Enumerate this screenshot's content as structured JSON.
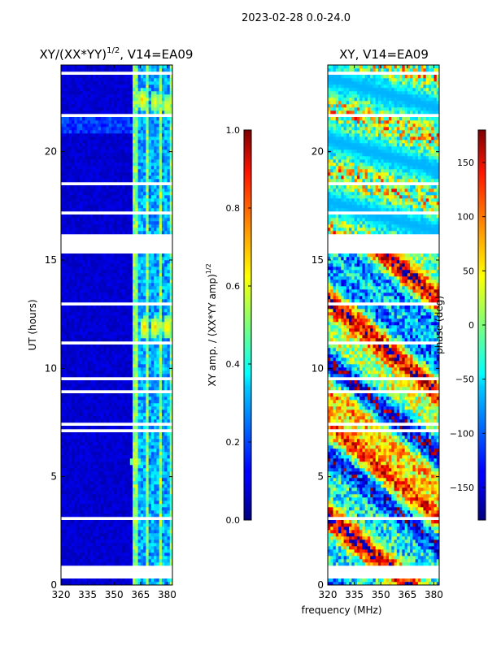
{
  "suptitle": "2023-02-28 0.0-24.0",
  "shared_xlabel": "frequency (MHz)",
  "chart_data": [
    {
      "type": "heatmap",
      "id": "amplitude",
      "title": "XY/(XX*YY)",
      "title_exponent": "1/2",
      "title_suffix": ", V14=EA09",
      "ylabel": "UT (hours)",
      "xlim": [
        320,
        383
      ],
      "ylim": [
        0,
        24
      ],
      "xticks": [
        320,
        335,
        350,
        365,
        380
      ],
      "yticks": [
        0,
        5,
        10,
        15,
        20
      ],
      "colormap": "jet",
      "colorbar": {
        "label": "XY amp. / (XX*YY amp)",
        "label_exponent": "1/2",
        "range": [
          0.0,
          1.0
        ],
        "ticks": [
          "0.0",
          "0.2",
          "0.4",
          "0.6",
          "0.8",
          "1.0"
        ]
      },
      "gap_hours": [
        0.5,
        15.9
      ],
      "low_region_value": 0.05,
      "high_band_start_mhz": 361,
      "bright_patches": [
        {
          "freq": 366,
          "ut": 22.4,
          "value": 0.7
        },
        {
          "freq": 373,
          "ut": 22.3,
          "value": 0.65
        },
        {
          "freq": 380,
          "ut": 22.1,
          "value": 0.65
        },
        {
          "freq": 367,
          "ut": 11.9,
          "value": 0.7
        },
        {
          "freq": 373,
          "ut": 11.9,
          "value": 0.7
        },
        {
          "freq": 380,
          "ut": 11.9,
          "value": 0.7
        },
        {
          "freq": 362,
          "ut": 5.7,
          "value": 0.65
        }
      ]
    },
    {
      "type": "heatmap",
      "id": "phase",
      "title": "XY, V14=EA09",
      "ylabel": "",
      "xlim": [
        320,
        383
      ],
      "ylim": [
        0,
        24
      ],
      "xticks": [
        320,
        335,
        350,
        365,
        380
      ],
      "yticks": [
        0,
        5,
        10,
        15,
        20
      ],
      "colormap": "jet",
      "colorbar": {
        "label": "phase (deg)",
        "range": [
          -180,
          180
        ],
        "ticks": [
          "−150",
          "−100",
          "−50",
          "0",
          "50",
          "100",
          "150"
        ]
      },
      "gap_hours": [
        0.5,
        15.9
      ]
    }
  ]
}
